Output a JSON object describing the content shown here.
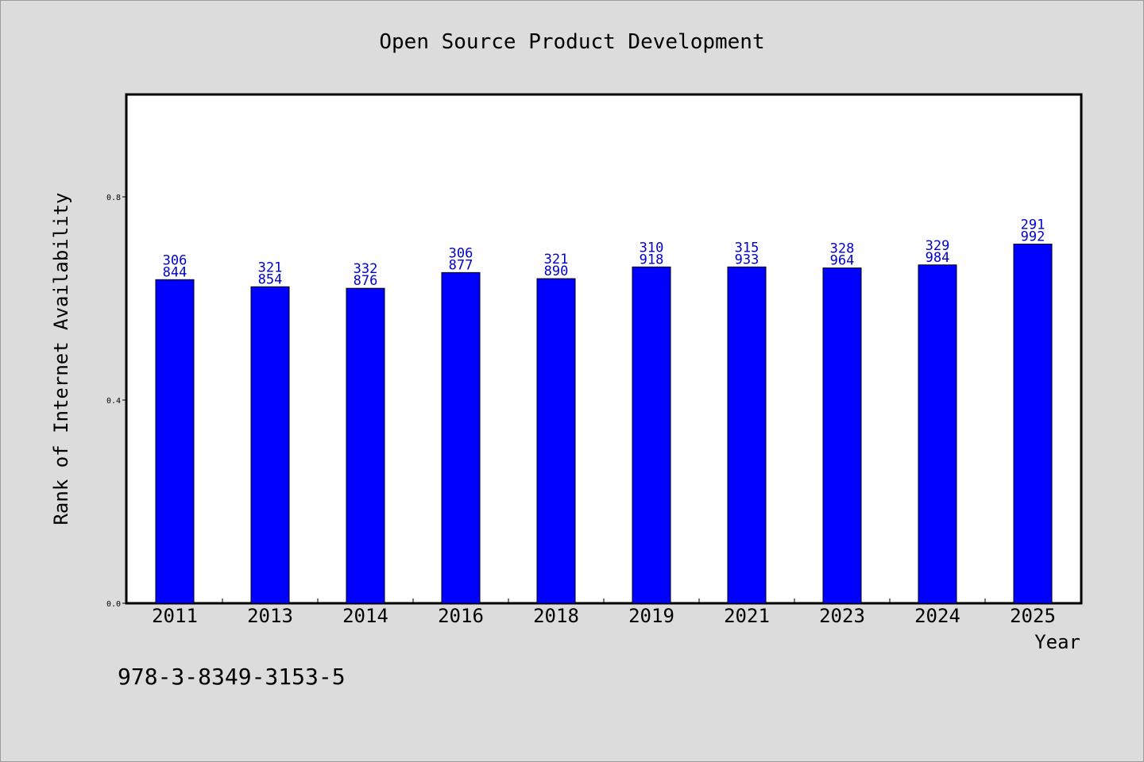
{
  "chart_data": {
    "type": "bar",
    "title": "Open Source Product Development",
    "xlabel": "Year",
    "ylabel": "Rank of Internet Availability",
    "categories": [
      "2011",
      "2013",
      "2014",
      "2016",
      "2018",
      "2019",
      "2021",
      "2023",
      "2024",
      "2025"
    ],
    "series": [
      {
        "values": [
          0.637,
          0.623,
          0.62,
          0.651,
          0.639,
          0.662,
          0.662,
          0.66,
          0.666,
          0.707
        ]
      }
    ],
    "bar_labels": [
      [
        "306",
        "844"
      ],
      [
        "321",
        "854"
      ],
      [
        "332",
        "876"
      ],
      [
        "306",
        "877"
      ],
      [
        "321",
        "890"
      ],
      [
        "310",
        "918"
      ],
      [
        "315",
        "933"
      ],
      [
        "328",
        "964"
      ],
      [
        "329",
        "984"
      ],
      [
        "291",
        "992"
      ]
    ],
    "ylim": [
      0,
      1.0
    ],
    "yticks": [
      "0.0",
      "0.4",
      "0.8"
    ],
    "grid": false,
    "colors": {
      "bar_fill": "#0000ff",
      "bar_stroke": "#000000",
      "label_text": "#0000cc",
      "background": "#dcdcdc",
      "plot_background": "#ffffff"
    }
  },
  "footnote": "978-3-8349-3153-5"
}
